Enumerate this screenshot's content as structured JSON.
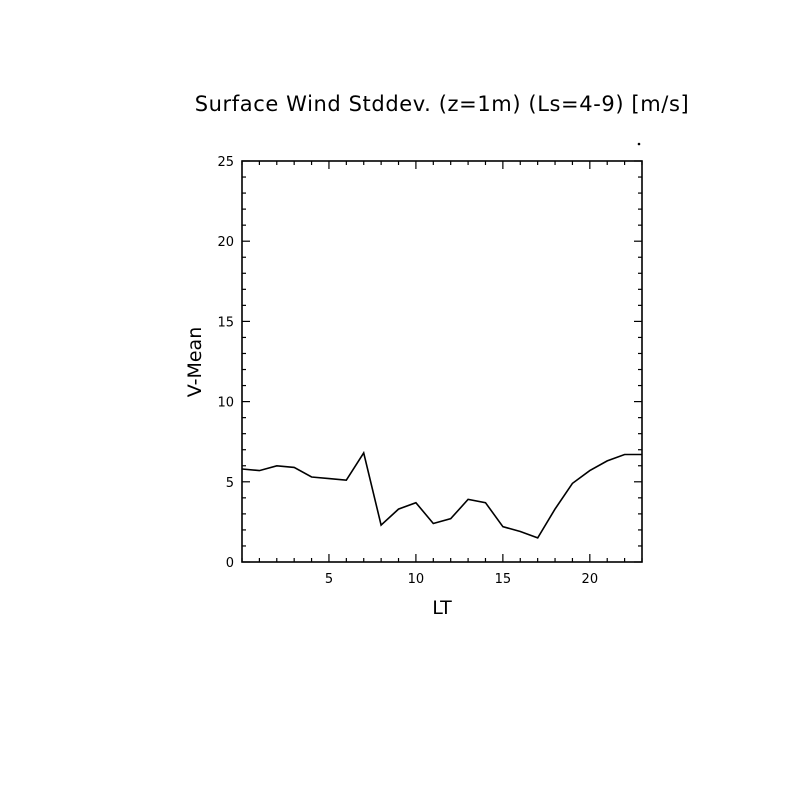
{
  "chart_data": {
    "type": "line",
    "title": "Surface Wind Stddev. (z=1m) (Ls=4-9) [m/s]",
    "xlabel": "LT",
    "ylabel": "V-Mean",
    "xlim": [
      0,
      23
    ],
    "ylim": [
      0,
      25
    ],
    "x_ticks": [
      5,
      10,
      15,
      20
    ],
    "x_tick_labels": [
      "5",
      "10",
      "15",
      "20"
    ],
    "y_ticks": [
      0,
      5,
      10,
      15,
      20,
      25
    ],
    "y_tick_labels": [
      "0",
      "5",
      "10",
      "15",
      "20",
      "25"
    ],
    "x_minor_step": 1,
    "y_minor_step": 1,
    "grid": false,
    "legend": "none",
    "series": [
      {
        "x": [
          0,
          1,
          2,
          3,
          4,
          5,
          6,
          7,
          8,
          9,
          10,
          11,
          12,
          13,
          14,
          15,
          16,
          17,
          18,
          19,
          20,
          21,
          22,
          23
        ],
        "values": [
          5.8,
          5.7,
          6.0,
          5.9,
          5.3,
          5.2,
          5.1,
          6.8,
          2.3,
          3.3,
          3.7,
          2.4,
          2.7,
          3.9,
          3.7,
          2.2,
          1.9,
          1.5,
          3.3,
          4.9,
          5.7,
          6.3,
          6.7,
          6.7
        ]
      }
    ],
    "colors": {
      "line": "#000000",
      "frame": "#000000",
      "background": "#ffffff"
    }
  }
}
